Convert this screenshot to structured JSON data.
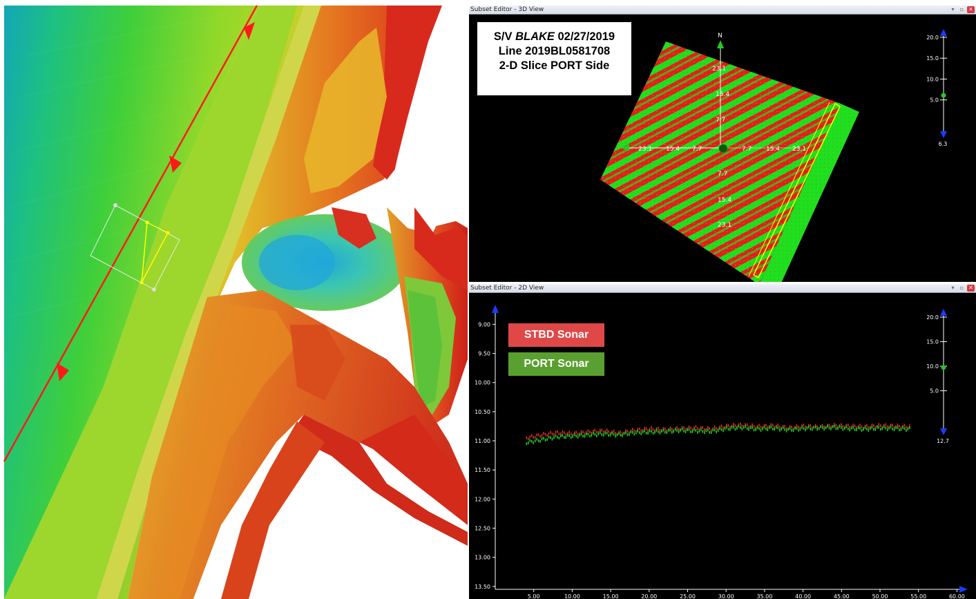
{
  "map": {
    "colors": {
      "line": "#ff1a1a",
      "slice_box": "#e8e8e8",
      "slice_line": "#ffff00"
    }
  },
  "view3d": {
    "title": "Subset Editor - 3D View",
    "info": {
      "prefix": "S/V ",
      "vessel": "BLAKE",
      "date": " 02/27/2019",
      "line": "Line 2019BL0581708",
      "slice": "2-D Slice PORT Side"
    },
    "compass_label": "N",
    "axis_labels": [
      "23.1",
      "15.4",
      "7.7",
      "7.7",
      "15.4",
      "23.1",
      "23.1",
      "15.4",
      "7.7",
      "7.7",
      "15.4",
      "23.1"
    ],
    "scale_ticks": [
      "20.0",
      "15.0",
      "10.0",
      "5.0"
    ],
    "scale_value": "6.3"
  },
  "view2d": {
    "title": "Subset Editor - 2D View",
    "legend": {
      "stbd": "STBD Sonar",
      "port": "PORT Sonar"
    },
    "scale_ticks": [
      "20.0",
      "15.0",
      "10.0",
      "5.0"
    ],
    "scale_value": "12.7"
  },
  "colors": {
    "stbd": "#e83030",
    "port": "#22dd22",
    "legend_stbd": "#e04848",
    "legend_port": "#5aa030",
    "axis": "#ffffff",
    "scale_arrow": "#1a3cff",
    "scale_knob": "#22cc22"
  },
  "chart_data": {
    "type": "scatter",
    "x_ticks": [
      "5.00",
      "10.00",
      "15.00",
      "20.00",
      "25.00",
      "30.00",
      "35.00",
      "40.00",
      "45.00",
      "50.00",
      "55.00",
      "60.00"
    ],
    "y_ticks": [
      "9.00",
      "9.50",
      "10.00",
      "10.50",
      "11.00",
      "11.50",
      "12.00",
      "12.50",
      "13.00",
      "13.50"
    ],
    "xlim": [
      0,
      60.5
    ],
    "ylim": [
      8.9,
      13.55
    ],
    "y_inverted": true,
    "series": [
      {
        "name": "STBD Sonar",
        "color": "#e83030",
        "x": [
          4.0,
          6.0,
          8.0,
          10.0,
          12.0,
          14.0,
          16.0,
          18.0,
          20.0,
          22.0,
          24.0,
          26.0,
          28.0,
          30.0,
          32.0,
          34.0,
          36.0,
          38.0,
          40.0,
          42.0,
          44.0,
          46.0,
          48.0,
          50.0,
          52.0,
          54.0
        ],
        "y": [
          10.95,
          10.9,
          10.86,
          10.88,
          10.85,
          10.83,
          10.87,
          10.82,
          10.8,
          10.81,
          10.79,
          10.78,
          10.8,
          10.75,
          10.73,
          10.76,
          10.74,
          10.78,
          10.75,
          10.76,
          10.74,
          10.75,
          10.76,
          10.74,
          10.75,
          10.76
        ]
      },
      {
        "name": "PORT Sonar",
        "color": "#22dd22",
        "x": [
          4.0,
          6.0,
          8.0,
          10.0,
          12.0,
          14.0,
          16.0,
          18.0,
          20.0,
          22.0,
          24.0,
          26.0,
          28.0,
          30.0,
          32.0,
          34.0,
          36.0,
          38.0,
          40.0,
          42.0,
          44.0,
          46.0,
          48.0,
          50.0,
          52.0,
          54.0
        ],
        "y": [
          11.03,
          10.98,
          10.93,
          10.92,
          10.9,
          10.88,
          10.9,
          10.86,
          10.85,
          10.84,
          10.82,
          10.83,
          10.84,
          10.79,
          10.77,
          10.8,
          10.78,
          10.81,
          10.79,
          10.78,
          10.77,
          10.79,
          10.8,
          10.78,
          10.79,
          10.8
        ]
      }
    ]
  }
}
